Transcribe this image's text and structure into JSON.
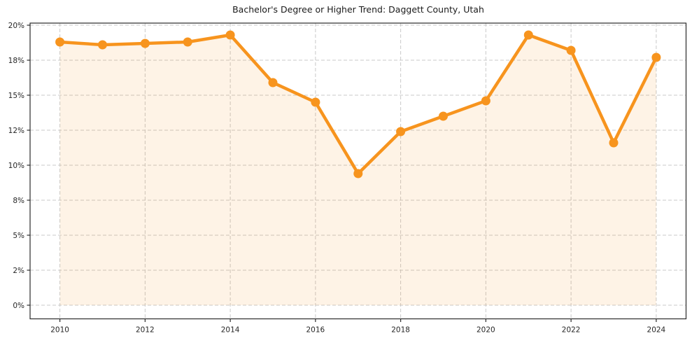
{
  "chart_data": {
    "type": "line",
    "title": "Bachelor's Degree or Higher Trend: Daggett County, Utah",
    "x": [
      2010,
      2011,
      2012,
      2013,
      2014,
      2015,
      2016,
      2017,
      2018,
      2019,
      2020,
      2021,
      2022,
      2023,
      2024
    ],
    "series": [
      {
        "values": [
          18.8,
          18.6,
          18.7,
          18.8,
          19.3,
          15.9,
          14.5,
          9.4,
          12.4,
          13.5,
          14.6,
          19.3,
          18.2,
          11.6,
          17.7
        ]
      }
    ],
    "xlabel": "",
    "ylabel": "",
    "ylim": [
      0,
      20
    ],
    "xlim": [
      2009.3,
      2024.7
    ],
    "yticks": {
      "values": [
        0,
        2.5,
        5,
        7.5,
        10,
        12.5,
        15,
        17.5,
        20
      ],
      "labels": [
        "0%",
        "2%",
        "5%",
        "8%",
        "10%",
        "12%",
        "15%",
        "18%",
        "20%"
      ]
    },
    "xticks": {
      "values": [
        2010,
        2012,
        2014,
        2016,
        2018,
        2020,
        2022,
        2024
      ],
      "labels": [
        "2010",
        "2012",
        "2014",
        "2016",
        "2018",
        "2020",
        "2022",
        "2024"
      ]
    },
    "grid": true,
    "legend": false,
    "area_fill_to_zero": true,
    "marker": "circle",
    "colors": {
      "line": "#f7941e",
      "fill": "rgba(247,148,30,0.11)",
      "grid": "#c9c9c9",
      "axis": "#2a2a2a",
      "tick_text": "#262626",
      "background": "#ffffff"
    }
  }
}
